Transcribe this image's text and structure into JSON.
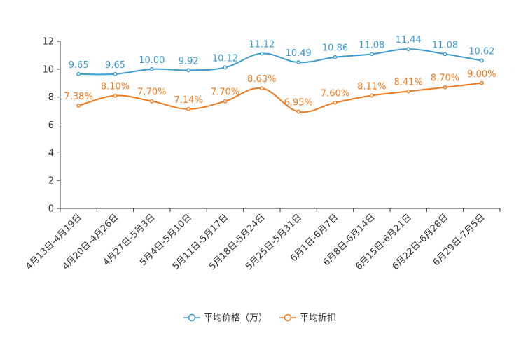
{
  "chart_data": {
    "type": "line",
    "categories": [
      "4月13日-4月19日",
      "4月20日-4月26日",
      "4月27日-5月3日",
      "5月4日-5月10日",
      "5月11日-5月17日",
      "5月18日-5月24日",
      "5月25日-5月31日",
      "6月1日-6月7日",
      "6月8日-6月14日",
      "6月15日-6月21日",
      "6月22日-6月28日",
      "6月29日-7月5日"
    ],
    "ylim": [
      0,
      12
    ],
    "yticks": [
      0,
      2,
      4,
      6,
      8,
      10,
      12
    ],
    "grid": false,
    "legend_position": "bottom-center",
    "series": [
      {
        "name": "平均价格（万）",
        "color": "#3d9bd0",
        "values": [
          9.65,
          9.65,
          10.0,
          9.92,
          10.12,
          11.12,
          10.49,
          10.86,
          11.08,
          11.44,
          11.08,
          10.62
        ],
        "labels": [
          "9.65",
          "9.65",
          "10.00",
          "9.92",
          "10.12",
          "11.12",
          "10.49",
          "10.86",
          "11.08",
          "11.44",
          "11.08",
          "10.62"
        ]
      },
      {
        "name": "平均折扣",
        "color": "#f07a1e",
        "values": [
          7.38,
          8.1,
          7.7,
          7.14,
          7.7,
          8.63,
          6.95,
          7.6,
          8.11,
          8.41,
          8.7,
          9.0
        ],
        "labels": [
          "7.38%",
          "8.10%",
          "7.70%",
          "7.14%",
          "7.70%",
          "8.63%",
          "6.95%",
          "7.60%",
          "8.11%",
          "8.41%",
          "8.70%",
          "9.00%"
        ]
      }
    ]
  }
}
